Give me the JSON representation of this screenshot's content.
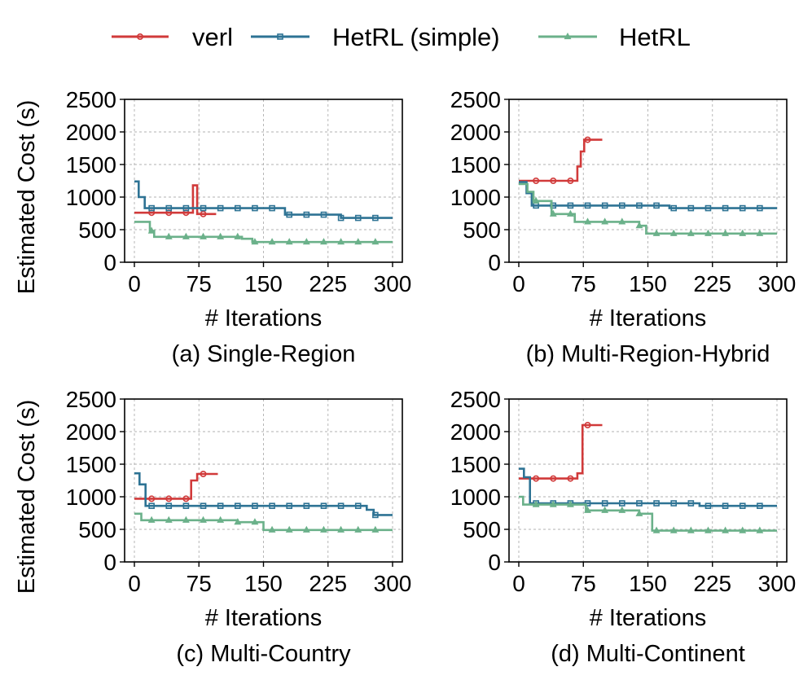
{
  "colors": {
    "verl": "#d13a3a",
    "hetrl_simple": "#2e7394",
    "hetrl": "#6bb18a",
    "grid": "#b0b0b0",
    "axis": "#000000"
  },
  "legend": [
    {
      "key": "verl",
      "label": "verl",
      "marker": "circle"
    },
    {
      "key": "hetrl_simple",
      "label": "HetRL (simple)",
      "marker": "square"
    },
    {
      "key": "hetrl",
      "label": "HetRL",
      "marker": "triangle"
    }
  ],
  "chart_data": [
    {
      "type": "line",
      "subtitle": "(a) Single-Region",
      "xlabel": "# Iterations",
      "ylabel": "Estimated Cost (s)",
      "xlim": [
        0,
        300
      ],
      "ylim": [
        0,
        2500
      ],
      "xticks": [
        0,
        75,
        150,
        225,
        300
      ],
      "yticks": [
        0,
        500,
        1000,
        1500,
        2000,
        2500
      ],
      "series": [
        {
          "key": "verl",
          "name": "verl",
          "points": [
            [
              0,
              760
            ],
            [
              68,
              760
            ],
            [
              68,
              1180
            ],
            [
              73,
              1180
            ],
            [
              73,
              740
            ],
            [
              95,
              740
            ]
          ],
          "marker_x": [
            20,
            40,
            60,
            80
          ]
        },
        {
          "key": "hetrl_simple",
          "name": "HetRL (simple)",
          "points": [
            [
              0,
              1240
            ],
            [
              5,
              1240
            ],
            [
              5,
              1000
            ],
            [
              12,
              1000
            ],
            [
              12,
              830
            ],
            [
              175,
              830
            ],
            [
              175,
              730
            ],
            [
              240,
              730
            ],
            [
              240,
              680
            ],
            [
              300,
              680
            ]
          ],
          "marker_x": [
            20,
            40,
            60,
            80,
            100,
            120,
            140,
            160,
            180,
            200,
            220,
            240,
            260,
            280
          ]
        },
        {
          "key": "hetrl",
          "name": "HetRL",
          "points": [
            [
              0,
              620
            ],
            [
              18,
              620
            ],
            [
              18,
              480
            ],
            [
              23,
              480
            ],
            [
              23,
              390
            ],
            [
              125,
              390
            ],
            [
              125,
              360
            ],
            [
              137,
              360
            ],
            [
              137,
              310
            ],
            [
              300,
              310
            ]
          ],
          "marker_x": [
            20,
            40,
            60,
            80,
            100,
            120,
            140,
            160,
            180,
            200,
            220,
            240,
            260,
            280
          ]
        }
      ]
    },
    {
      "type": "line",
      "subtitle": "(b) Multi-Region-Hybrid",
      "xlabel": "# Iterations",
      "ylabel": "Estimated Cost (s)",
      "xlim": [
        0,
        300
      ],
      "ylim": [
        0,
        2500
      ],
      "xticks": [
        0,
        75,
        150,
        225,
        300
      ],
      "yticks": [
        0,
        500,
        1000,
        1500,
        2000,
        2500
      ],
      "series": [
        {
          "key": "verl",
          "name": "verl",
          "points": [
            [
              0,
              1250
            ],
            [
              68,
              1250
            ],
            [
              68,
              1470
            ],
            [
              72,
              1470
            ],
            [
              72,
              1700
            ],
            [
              76,
              1700
            ],
            [
              76,
              1880
            ],
            [
              97,
              1880
            ]
          ],
          "marker_x": [
            20,
            40,
            60,
            80
          ]
        },
        {
          "key": "hetrl_simple",
          "name": "HetRL (simple)",
          "points": [
            [
              0,
              1230
            ],
            [
              9,
              1230
            ],
            [
              9,
              1060
            ],
            [
              15,
              1060
            ],
            [
              15,
              870
            ],
            [
              175,
              870
            ],
            [
              175,
              830
            ],
            [
              300,
              830
            ]
          ],
          "marker_x": [
            20,
            40,
            60,
            80,
            100,
            120,
            140,
            160,
            180,
            200,
            220,
            240,
            260,
            280
          ]
        },
        {
          "key": "hetrl",
          "name": "HetRL",
          "points": [
            [
              0,
              1200
            ],
            [
              10,
              1200
            ],
            [
              10,
              1080
            ],
            [
              17,
              1080
            ],
            [
              17,
              940
            ],
            [
              38,
              940
            ],
            [
              38,
              740
            ],
            [
              65,
              740
            ],
            [
              65,
              620
            ],
            [
              140,
              620
            ],
            [
              140,
              560
            ],
            [
              148,
              560
            ],
            [
              148,
              440
            ],
            [
              300,
              440
            ]
          ],
          "marker_x": [
            20,
            40,
            60,
            80,
            100,
            120,
            140,
            160,
            180,
            200,
            220,
            240,
            260,
            280
          ]
        }
      ]
    },
    {
      "type": "line",
      "subtitle": "(c) Multi-Country",
      "xlabel": "# Iterations",
      "ylabel": "Estimated Cost (s)",
      "xlim": [
        0,
        300
      ],
      "ylim": [
        0,
        2500
      ],
      "xticks": [
        0,
        75,
        150,
        225,
        300
      ],
      "yticks": [
        0,
        500,
        1000,
        1500,
        2000,
        2500
      ],
      "series": [
        {
          "key": "verl",
          "name": "verl",
          "points": [
            [
              0,
              970
            ],
            [
              66,
              970
            ],
            [
              66,
              1250
            ],
            [
              73,
              1250
            ],
            [
              73,
              1350
            ],
            [
              97,
              1350
            ]
          ],
          "marker_x": [
            20,
            40,
            60,
            80
          ]
        },
        {
          "key": "hetrl_simple",
          "name": "HetRL (simple)",
          "points": [
            [
              0,
              1360
            ],
            [
              6,
              1360
            ],
            [
              6,
              1190
            ],
            [
              13,
              1190
            ],
            [
              13,
              860
            ],
            [
              270,
              860
            ],
            [
              270,
              800
            ],
            [
              278,
              800
            ],
            [
              278,
              720
            ],
            [
              300,
              720
            ]
          ],
          "marker_x": [
            20,
            40,
            60,
            80,
            100,
            120,
            140,
            160,
            180,
            200,
            220,
            240,
            260,
            280
          ]
        },
        {
          "key": "hetrl",
          "name": "HetRL",
          "points": [
            [
              0,
              740
            ],
            [
              8,
              740
            ],
            [
              8,
              640
            ],
            [
              120,
              640
            ],
            [
              120,
              610
            ],
            [
              150,
              610
            ],
            [
              150,
              490
            ],
            [
              300,
              490
            ]
          ],
          "marker_x": [
            20,
            40,
            60,
            80,
            100,
            120,
            140,
            160,
            180,
            200,
            220,
            240,
            260,
            280
          ]
        }
      ]
    },
    {
      "type": "line",
      "subtitle": "(d) Multi-Continent",
      "xlabel": "# Iterations",
      "ylabel": "Estimated Cost (s)",
      "xlim": [
        0,
        300
      ],
      "ylim": [
        0,
        2500
      ],
      "xticks": [
        0,
        75,
        150,
        225,
        300
      ],
      "yticks": [
        0,
        500,
        1000,
        1500,
        2000,
        2500
      ],
      "series": [
        {
          "key": "verl",
          "name": "verl",
          "points": [
            [
              0,
              1280
            ],
            [
              68,
              1280
            ],
            [
              68,
              1360
            ],
            [
              74,
              1360
            ],
            [
              74,
              2100
            ],
            [
              97,
              2100
            ]
          ],
          "marker_x": [
            20,
            40,
            60,
            80
          ]
        },
        {
          "key": "hetrl_simple",
          "name": "HetRL (simple)",
          "points": [
            [
              0,
              1430
            ],
            [
              6,
              1430
            ],
            [
              6,
              1300
            ],
            [
              13,
              1300
            ],
            [
              13,
              900
            ],
            [
              210,
              900
            ],
            [
              210,
              860
            ],
            [
              300,
              860
            ]
          ],
          "marker_x": [
            20,
            40,
            60,
            80,
            100,
            120,
            140,
            160,
            180,
            200,
            220,
            240,
            260,
            280
          ]
        },
        {
          "key": "hetrl",
          "name": "HetRL",
          "points": [
            [
              0,
              1000
            ],
            [
              5,
              1000
            ],
            [
              5,
              880
            ],
            [
              78,
              880
            ],
            [
              78,
              790
            ],
            [
              140,
              790
            ],
            [
              140,
              740
            ],
            [
              155,
              740
            ],
            [
              155,
              480
            ],
            [
              300,
              480
            ]
          ],
          "marker_x": [
            20,
            40,
            60,
            80,
            100,
            120,
            140,
            160,
            180,
            200,
            220,
            240,
            260,
            280
          ]
        }
      ]
    }
  ]
}
